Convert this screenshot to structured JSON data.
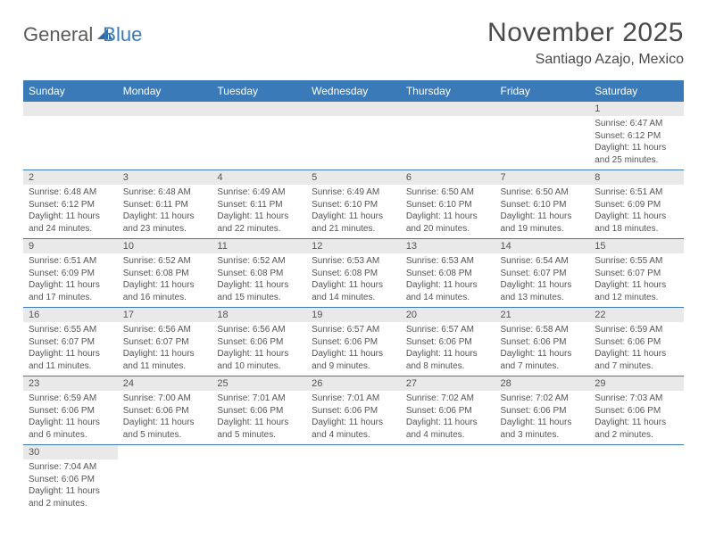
{
  "logo": {
    "text1": "General",
    "text2": "Blue",
    "sail_color": "#2f6aa8"
  },
  "title": "November 2025",
  "subtitle": "Santiago Azajo, Mexico",
  "colors": {
    "header_bg": "#3a7ab8",
    "header_text": "#ffffff",
    "daynum_bg": "#e9e9e9",
    "cell_border": "#3a7ab8",
    "body_text": "#555555"
  },
  "day_headers": [
    "Sunday",
    "Monday",
    "Tuesday",
    "Wednesday",
    "Thursday",
    "Friday",
    "Saturday"
  ],
  "first_weekday_index": 6,
  "days": [
    {
      "n": 1,
      "sunrise": "6:47 AM",
      "sunset": "6:12 PM",
      "daylight": "11 hours and 25 minutes."
    },
    {
      "n": 2,
      "sunrise": "6:48 AM",
      "sunset": "6:12 PM",
      "daylight": "11 hours and 24 minutes."
    },
    {
      "n": 3,
      "sunrise": "6:48 AM",
      "sunset": "6:11 PM",
      "daylight": "11 hours and 23 minutes."
    },
    {
      "n": 4,
      "sunrise": "6:49 AM",
      "sunset": "6:11 PM",
      "daylight": "11 hours and 22 minutes."
    },
    {
      "n": 5,
      "sunrise": "6:49 AM",
      "sunset": "6:10 PM",
      "daylight": "11 hours and 21 minutes."
    },
    {
      "n": 6,
      "sunrise": "6:50 AM",
      "sunset": "6:10 PM",
      "daylight": "11 hours and 20 minutes."
    },
    {
      "n": 7,
      "sunrise": "6:50 AM",
      "sunset": "6:10 PM",
      "daylight": "11 hours and 19 minutes."
    },
    {
      "n": 8,
      "sunrise": "6:51 AM",
      "sunset": "6:09 PM",
      "daylight": "11 hours and 18 minutes."
    },
    {
      "n": 9,
      "sunrise": "6:51 AM",
      "sunset": "6:09 PM",
      "daylight": "11 hours and 17 minutes."
    },
    {
      "n": 10,
      "sunrise": "6:52 AM",
      "sunset": "6:08 PM",
      "daylight": "11 hours and 16 minutes."
    },
    {
      "n": 11,
      "sunrise": "6:52 AM",
      "sunset": "6:08 PM",
      "daylight": "11 hours and 15 minutes."
    },
    {
      "n": 12,
      "sunrise": "6:53 AM",
      "sunset": "6:08 PM",
      "daylight": "11 hours and 14 minutes."
    },
    {
      "n": 13,
      "sunrise": "6:53 AM",
      "sunset": "6:08 PM",
      "daylight": "11 hours and 14 minutes."
    },
    {
      "n": 14,
      "sunrise": "6:54 AM",
      "sunset": "6:07 PM",
      "daylight": "11 hours and 13 minutes."
    },
    {
      "n": 15,
      "sunrise": "6:55 AM",
      "sunset": "6:07 PM",
      "daylight": "11 hours and 12 minutes."
    },
    {
      "n": 16,
      "sunrise": "6:55 AM",
      "sunset": "6:07 PM",
      "daylight": "11 hours and 11 minutes."
    },
    {
      "n": 17,
      "sunrise": "6:56 AM",
      "sunset": "6:07 PM",
      "daylight": "11 hours and 11 minutes."
    },
    {
      "n": 18,
      "sunrise": "6:56 AM",
      "sunset": "6:06 PM",
      "daylight": "11 hours and 10 minutes."
    },
    {
      "n": 19,
      "sunrise": "6:57 AM",
      "sunset": "6:06 PM",
      "daylight": "11 hours and 9 minutes."
    },
    {
      "n": 20,
      "sunrise": "6:57 AM",
      "sunset": "6:06 PM",
      "daylight": "11 hours and 8 minutes."
    },
    {
      "n": 21,
      "sunrise": "6:58 AM",
      "sunset": "6:06 PM",
      "daylight": "11 hours and 7 minutes."
    },
    {
      "n": 22,
      "sunrise": "6:59 AM",
      "sunset": "6:06 PM",
      "daylight": "11 hours and 7 minutes."
    },
    {
      "n": 23,
      "sunrise": "6:59 AM",
      "sunset": "6:06 PM",
      "daylight": "11 hours and 6 minutes."
    },
    {
      "n": 24,
      "sunrise": "7:00 AM",
      "sunset": "6:06 PM",
      "daylight": "11 hours and 5 minutes."
    },
    {
      "n": 25,
      "sunrise": "7:01 AM",
      "sunset": "6:06 PM",
      "daylight": "11 hours and 5 minutes."
    },
    {
      "n": 26,
      "sunrise": "7:01 AM",
      "sunset": "6:06 PM",
      "daylight": "11 hours and 4 minutes."
    },
    {
      "n": 27,
      "sunrise": "7:02 AM",
      "sunset": "6:06 PM",
      "daylight": "11 hours and 4 minutes."
    },
    {
      "n": 28,
      "sunrise": "7:02 AM",
      "sunset": "6:06 PM",
      "daylight": "11 hours and 3 minutes."
    },
    {
      "n": 29,
      "sunrise": "7:03 AM",
      "sunset": "6:06 PM",
      "daylight": "11 hours and 2 minutes."
    },
    {
      "n": 30,
      "sunrise": "7:04 AM",
      "sunset": "6:06 PM",
      "daylight": "11 hours and 2 minutes."
    }
  ],
  "labels": {
    "sunrise": "Sunrise:",
    "sunset": "Sunset:",
    "daylight": "Daylight:"
  }
}
